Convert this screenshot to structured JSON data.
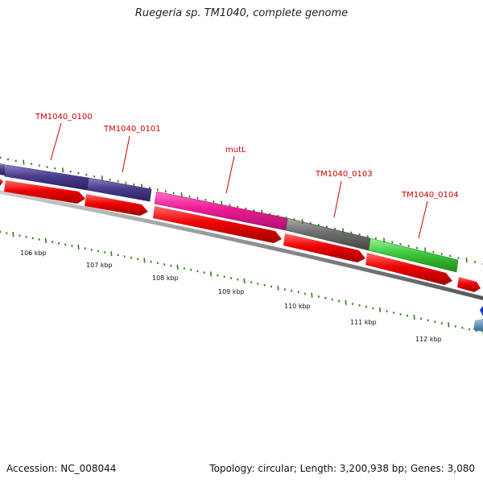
{
  "title": "Ruegeria sp. TM1040, complete genome",
  "footer": {
    "accession": "Accession: NC_008044",
    "summary": "Topology: circular; Length: 3,200,938 bp; Genes: 3,080"
  },
  "kbp_labels": [
    "106 kbp",
    "107 kbp",
    "108 kbp",
    "109 kbp",
    "110 kbp",
    "111 kbp",
    "112 kbp"
  ],
  "gene_labels": [
    "TM1040_0100",
    "TM1040_0101",
    "mutL",
    "TM1040_0103",
    "TM1040_0104"
  ],
  "colors": {
    "background": "#ffffff",
    "backbone": "#8c8c8c",
    "cds": "#ee0000",
    "label": "#cc0000",
    "tick": "#2e7d1a",
    "gene_purple": "#4b3d8c",
    "gene_magenta": "#ee1a96",
    "gene_gray": "#6e6e6e",
    "gene_green": "#3cc83c",
    "gene_blue": "#1a2fd0",
    "gene_steel": "#5a86b0"
  }
}
